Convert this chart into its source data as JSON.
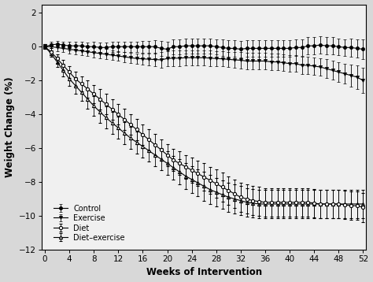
{
  "title": "",
  "xlabel": "Weeks of Intervention",
  "ylabel": "Weight Change (%)",
  "xlim": [
    -0.5,
    52.5
  ],
  "ylim": [
    -12,
    2.5
  ],
  "yticks": [
    -12,
    -10,
    -8,
    -6,
    -4,
    -2,
    0,
    2
  ],
  "xticks": [
    0,
    4,
    8,
    12,
    16,
    20,
    24,
    28,
    32,
    36,
    40,
    44,
    48,
    52
  ],
  "weeks": [
    0,
    1,
    2,
    3,
    4,
    5,
    6,
    7,
    8,
    9,
    10,
    11,
    12,
    13,
    14,
    15,
    16,
    17,
    18,
    19,
    20,
    21,
    22,
    23,
    24,
    25,
    26,
    27,
    28,
    29,
    30,
    31,
    32,
    33,
    34,
    35,
    36,
    37,
    38,
    39,
    40,
    41,
    42,
    43,
    44,
    45,
    46,
    47,
    48,
    49,
    50,
    51,
    52
  ],
  "control_y": [
    0.0,
    0.1,
    0.15,
    0.1,
    0.05,
    0.05,
    0.05,
    0.0,
    0.0,
    -0.05,
    -0.05,
    0.0,
    0.0,
    0.0,
    0.0,
    0.0,
    0.0,
    0.0,
    0.0,
    -0.1,
    -0.15,
    0.0,
    0.0,
    0.05,
    0.05,
    0.05,
    0.05,
    0.05,
    0.0,
    -0.05,
    -0.1,
    -0.1,
    -0.15,
    -0.1,
    -0.1,
    -0.1,
    -0.1,
    -0.1,
    -0.1,
    -0.1,
    -0.1,
    -0.05,
    -0.05,
    0.05,
    0.05,
    0.1,
    0.05,
    0.05,
    0.0,
    -0.05,
    -0.05,
    -0.1,
    -0.15
  ],
  "control_err": [
    0.15,
    0.2,
    0.2,
    0.2,
    0.25,
    0.25,
    0.25,
    0.25,
    0.3,
    0.3,
    0.3,
    0.3,
    0.3,
    0.3,
    0.3,
    0.3,
    0.35,
    0.35,
    0.4,
    0.45,
    0.45,
    0.45,
    0.45,
    0.45,
    0.45,
    0.45,
    0.45,
    0.45,
    0.45,
    0.5,
    0.5,
    0.5,
    0.5,
    0.5,
    0.5,
    0.5,
    0.5,
    0.5,
    0.5,
    0.5,
    0.5,
    0.5,
    0.5,
    0.5,
    0.5,
    0.5,
    0.5,
    0.5,
    0.5,
    0.5,
    0.55,
    0.55,
    0.6
  ],
  "exercise_y": [
    0.0,
    0.0,
    -0.05,
    -0.1,
    -0.15,
    -0.2,
    -0.25,
    -0.3,
    -0.35,
    -0.4,
    -0.45,
    -0.5,
    -0.55,
    -0.6,
    -0.65,
    -0.7,
    -0.72,
    -0.74,
    -0.76,
    -0.78,
    -0.7,
    -0.68,
    -0.68,
    -0.65,
    -0.65,
    -0.65,
    -0.65,
    -0.68,
    -0.7,
    -0.72,
    -0.75,
    -0.78,
    -0.8,
    -0.85,
    -0.85,
    -0.85,
    -0.85,
    -0.9,
    -0.9,
    -0.95,
    -1.0,
    -1.0,
    -1.1,
    -1.1,
    -1.15,
    -1.2,
    -1.3,
    -1.4,
    -1.5,
    -1.6,
    -1.7,
    -1.8,
    -2.0
  ],
  "exercise_err": [
    0.15,
    0.2,
    0.2,
    0.2,
    0.25,
    0.25,
    0.25,
    0.25,
    0.3,
    0.3,
    0.3,
    0.3,
    0.3,
    0.3,
    0.3,
    0.3,
    0.32,
    0.35,
    0.38,
    0.45,
    0.45,
    0.45,
    0.45,
    0.45,
    0.45,
    0.45,
    0.45,
    0.45,
    0.45,
    0.45,
    0.45,
    0.45,
    0.5,
    0.5,
    0.5,
    0.5,
    0.5,
    0.5,
    0.5,
    0.5,
    0.5,
    0.5,
    0.5,
    0.5,
    0.5,
    0.5,
    0.55,
    0.55,
    0.6,
    0.6,
    0.65,
    0.7,
    0.75
  ],
  "diet_y": [
    0.0,
    -0.3,
    -0.7,
    -1.1,
    -1.5,
    -1.9,
    -2.2,
    -2.5,
    -2.8,
    -3.1,
    -3.4,
    -3.7,
    -4.0,
    -4.3,
    -4.6,
    -4.9,
    -5.2,
    -5.5,
    -5.8,
    -6.1,
    -6.4,
    -6.7,
    -6.9,
    -7.1,
    -7.3,
    -7.5,
    -7.7,
    -7.9,
    -8.1,
    -8.3,
    -8.5,
    -8.7,
    -8.9,
    -9.0,
    -9.1,
    -9.15,
    -9.2,
    -9.2,
    -9.2,
    -9.2,
    -9.2,
    -9.2,
    -9.2,
    -9.2,
    -9.25,
    -9.3,
    -9.3,
    -9.3,
    -9.3,
    -9.35,
    -9.4,
    -9.4,
    -9.5
  ],
  "diet_err": [
    0.15,
    0.2,
    0.25,
    0.3,
    0.35,
    0.4,
    0.45,
    0.5,
    0.55,
    0.6,
    0.6,
    0.6,
    0.62,
    0.62,
    0.62,
    0.62,
    0.62,
    0.62,
    0.62,
    0.62,
    0.65,
    0.65,
    0.7,
    0.7,
    0.75,
    0.75,
    0.8,
    0.8,
    0.85,
    0.85,
    0.85,
    0.85,
    0.85,
    0.85,
    0.85,
    0.85,
    0.85,
    0.85,
    0.85,
    0.85,
    0.85,
    0.85,
    0.85,
    0.85,
    0.85,
    0.85,
    0.85,
    0.85,
    0.85,
    0.85,
    0.85,
    0.85,
    0.85
  ],
  "dietex_y": [
    0.0,
    -0.4,
    -0.9,
    -1.4,
    -1.9,
    -2.3,
    -2.7,
    -3.1,
    -3.5,
    -3.85,
    -4.2,
    -4.5,
    -4.8,
    -5.1,
    -5.4,
    -5.65,
    -5.9,
    -6.15,
    -6.4,
    -6.65,
    -6.9,
    -7.15,
    -7.4,
    -7.65,
    -7.85,
    -8.05,
    -8.25,
    -8.45,
    -8.6,
    -8.75,
    -8.9,
    -9.0,
    -9.1,
    -9.2,
    -9.25,
    -9.3,
    -9.3,
    -9.3,
    -9.3,
    -9.3,
    -9.3,
    -9.3,
    -9.3,
    -9.3,
    -9.3,
    -9.3,
    -9.3,
    -9.3,
    -9.3,
    -9.3,
    -9.3,
    -9.3,
    -9.3
  ],
  "dietex_err": [
    0.15,
    0.2,
    0.3,
    0.38,
    0.42,
    0.48,
    0.52,
    0.55,
    0.6,
    0.65,
    0.65,
    0.65,
    0.65,
    0.65,
    0.65,
    0.65,
    0.65,
    0.65,
    0.65,
    0.65,
    0.7,
    0.7,
    0.75,
    0.75,
    0.8,
    0.8,
    0.85,
    0.85,
    0.85,
    0.85,
    0.85,
    0.85,
    0.85,
    0.85,
    0.85,
    0.85,
    0.85,
    0.85,
    0.85,
    0.85,
    0.85,
    0.85,
    0.85,
    0.85,
    0.85,
    0.85,
    0.85,
    0.85,
    0.85,
    0.85,
    0.85,
    0.85,
    0.85
  ],
  "legend_labels": [
    "Control",
    "Exercise",
    "Diet",
    "Diet–exercise"
  ],
  "line_color": "#000000",
  "background_color": "#f0f0f0",
  "marker_size": 3.0,
  "linewidth": 0.8,
  "capsize": 1.5,
  "errorbar_linewidth": 0.6
}
